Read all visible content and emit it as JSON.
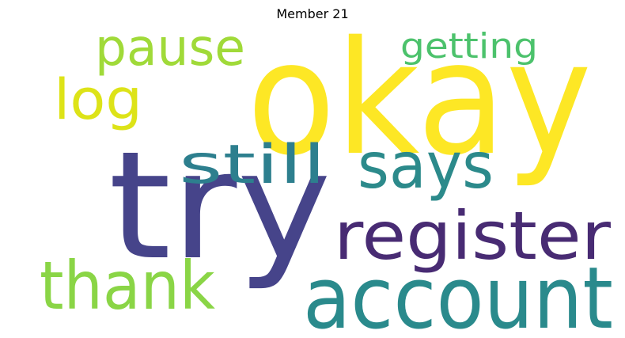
{
  "title": "Member 21",
  "words": [
    {
      "text": "okay",
      "color": "#fde725"
    },
    {
      "text": "try",
      "color": "#46448a"
    },
    {
      "text": "account",
      "color": "#2a8a8c"
    },
    {
      "text": "register",
      "color": "#482b73"
    },
    {
      "text": "says",
      "color": "#2c8a8b"
    },
    {
      "text": "still",
      "color": "#2d7f8e"
    },
    {
      "text": "thank",
      "color": "#8ad546"
    },
    {
      "text": "pause",
      "color": "#a0da39"
    },
    {
      "text": "log",
      "color": "#dde318"
    },
    {
      "text": "getting",
      "color": "#4cc26c"
    }
  ]
}
